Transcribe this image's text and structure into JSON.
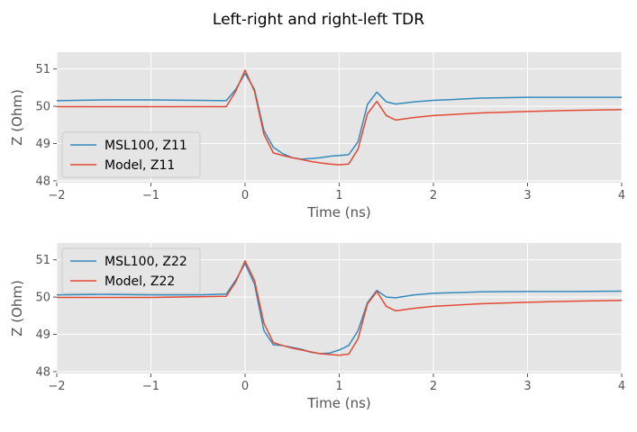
{
  "figure": {
    "title": "Left-right and right-left TDR"
  },
  "colors": {
    "panel_bg": "#e5e5e5",
    "grid": "#ffffff",
    "series_blue": "#348abd",
    "series_red": "#e24a33",
    "legend_bg": "#e5e5e5",
    "legend_edge": "#cccccc"
  },
  "chart_data": [
    {
      "type": "line",
      "title": "",
      "xlabel": "Time (ns)",
      "ylabel": "Z (Ohm)",
      "xlim": [
        -2,
        4
      ],
      "ylim": [
        47.95,
        51.45
      ],
      "xticks": [
        -2,
        -1,
        0,
        1,
        2,
        3,
        4
      ],
      "xtick_labels": [
        "−2",
        "−1",
        "0",
        "1",
        "2",
        "3",
        "4"
      ],
      "yticks": [
        48,
        49,
        50,
        51
      ],
      "ytick_labels": [
        "48",
        "49",
        "50",
        "51"
      ],
      "grid": true,
      "legend_position": "lower-left",
      "series": [
        {
          "name": "MSL100, Z11",
          "color": "#348abd",
          "x": [
            -2,
            -1.5,
            -1,
            -0.5,
            -0.2,
            -0.1,
            0,
            0.1,
            0.2,
            0.3,
            0.4,
            0.5,
            0.6,
            0.7,
            0.8,
            0.9,
            1.0,
            1.1,
            1.2,
            1.3,
            1.4,
            1.5,
            1.6,
            1.8,
            2.0,
            2.2,
            2.5,
            3.0,
            3.5,
            4.0
          ],
          "y": [
            50.15,
            50.17,
            50.17,
            50.16,
            50.15,
            50.45,
            50.88,
            50.45,
            49.35,
            48.9,
            48.73,
            48.62,
            48.58,
            48.6,
            48.62,
            48.66,
            48.68,
            48.7,
            49.05,
            50.05,
            50.38,
            50.12,
            50.06,
            50.12,
            50.16,
            50.18,
            50.22,
            50.24,
            50.24,
            50.24
          ]
        },
        {
          "name": "Model, Z11",
          "color": "#e24a33",
          "x": [
            -2,
            -1,
            -0.2,
            -0.1,
            0,
            0.1,
            0.2,
            0.3,
            0.4,
            0.5,
            0.6,
            0.7,
            0.8,
            0.9,
            1.0,
            1.1,
            1.2,
            1.3,
            1.4,
            1.5,
            1.6,
            1.8,
            2.0,
            2.5,
            3.0,
            3.5,
            4.0
          ],
          "y": [
            49.99,
            49.99,
            49.99,
            50.4,
            50.97,
            50.4,
            49.25,
            48.75,
            48.68,
            48.62,
            48.57,
            48.52,
            48.48,
            48.45,
            48.43,
            48.45,
            48.85,
            49.8,
            50.13,
            49.75,
            49.63,
            49.7,
            49.75,
            49.82,
            49.86,
            49.89,
            49.91
          ]
        }
      ]
    },
    {
      "type": "line",
      "title": "",
      "xlabel": "Time (ns)",
      "ylabel": "Z (Ohm)",
      "xlim": [
        -2,
        4
      ],
      "ylim": [
        47.95,
        51.45
      ],
      "xticks": [
        -2,
        -1,
        0,
        1,
        2,
        3,
        4
      ],
      "xtick_labels": [
        "−2",
        "−1",
        "0",
        "1",
        "2",
        "3",
        "4"
      ],
      "yticks": [
        48,
        49,
        50,
        51
      ],
      "ytick_labels": [
        "48",
        "49",
        "50",
        "51"
      ],
      "grid": true,
      "legend_position": "upper-left",
      "series": [
        {
          "name": "MSL100, Z22",
          "color": "#348abd",
          "x": [
            -2,
            -1.5,
            -1,
            -0.5,
            -0.2,
            -0.1,
            0,
            0.1,
            0.2,
            0.3,
            0.4,
            0.5,
            0.6,
            0.7,
            0.8,
            0.9,
            1.0,
            1.1,
            1.2,
            1.3,
            1.4,
            1.5,
            1.6,
            1.8,
            2.0,
            2.5,
            3.0,
            3.5,
            4.0
          ],
          "y": [
            50.06,
            50.07,
            50.06,
            50.06,
            50.08,
            50.45,
            50.9,
            50.35,
            49.1,
            48.72,
            48.7,
            48.65,
            48.6,
            48.52,
            48.48,
            48.5,
            48.58,
            48.7,
            49.1,
            49.85,
            50.18,
            50.0,
            49.98,
            50.06,
            50.1,
            50.14,
            50.15,
            50.15,
            50.16
          ]
        },
        {
          "name": "Model, Z22",
          "color": "#e24a33",
          "x": [
            -2,
            -1,
            -0.2,
            -0.1,
            0,
            0.1,
            0.2,
            0.3,
            0.4,
            0.5,
            0.6,
            0.7,
            0.8,
            0.9,
            1.0,
            1.1,
            1.2,
            1.3,
            1.4,
            1.5,
            1.6,
            1.8,
            2.0,
            2.5,
            3.0,
            3.5,
            4.0
          ],
          "y": [
            49.99,
            49.99,
            50.02,
            50.4,
            50.97,
            50.45,
            49.3,
            48.78,
            48.7,
            48.63,
            48.58,
            48.53,
            48.48,
            48.46,
            48.44,
            48.47,
            48.88,
            49.82,
            50.15,
            49.75,
            49.63,
            49.7,
            49.75,
            49.82,
            49.86,
            49.89,
            49.91
          ]
        }
      ]
    }
  ]
}
